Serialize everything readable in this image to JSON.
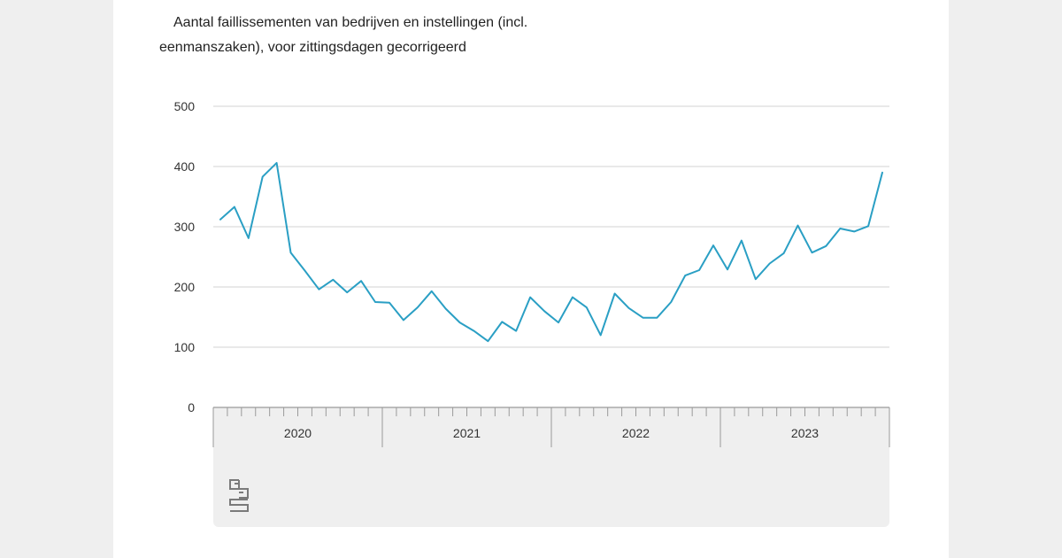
{
  "chart_data": {
    "type": "line",
    "title": "Aantal faillissementen van bedrijven en instellingen (incl. eenmanszaken), voor zittingsdagen gecorrigeerd",
    "xlabel": "",
    "ylabel": "",
    "ylim": [
      0,
      500
    ],
    "yticks": [
      "0",
      "100",
      "200",
      "300",
      "400",
      "500"
    ],
    "years": [
      "2020",
      "2021",
      "2022",
      "2023"
    ],
    "grid": true,
    "series": [
      {
        "name": "",
        "color": "#2a9fc4",
        "x": [
          "2020-01",
          "2020-02",
          "2020-03",
          "2020-04",
          "2020-05",
          "2020-06",
          "2020-07",
          "2020-08",
          "2020-09",
          "2020-10",
          "2020-11",
          "2020-12",
          "2021-01",
          "2021-02",
          "2021-03",
          "2021-04",
          "2021-05",
          "2021-06",
          "2021-07",
          "2021-08",
          "2021-09",
          "2021-10",
          "2021-11",
          "2021-12",
          "2022-01",
          "2022-02",
          "2022-03",
          "2022-04",
          "2022-05",
          "2022-06",
          "2022-07",
          "2022-08",
          "2022-09",
          "2022-10",
          "2022-11",
          "2022-12",
          "2023-01",
          "2023-02",
          "2023-03",
          "2023-04",
          "2023-05",
          "2023-06",
          "2023-07",
          "2023-08",
          "2023-09",
          "2023-10",
          "2023-11",
          "2023-12"
        ],
        "values": [
          312,
          333,
          281,
          383,
          406,
          257,
          227,
          196,
          212,
          191,
          210,
          175,
          174,
          145,
          166,
          193,
          164,
          141,
          127,
          110,
          142,
          127,
          183,
          160,
          141,
          183,
          166,
          120,
          189,
          165,
          149,
          149,
          175,
          219,
          228,
          269,
          229,
          277,
          213,
          239,
          256,
          302,
          257,
          268,
          297,
          292,
          301,
          390
        ]
      }
    ]
  }
}
